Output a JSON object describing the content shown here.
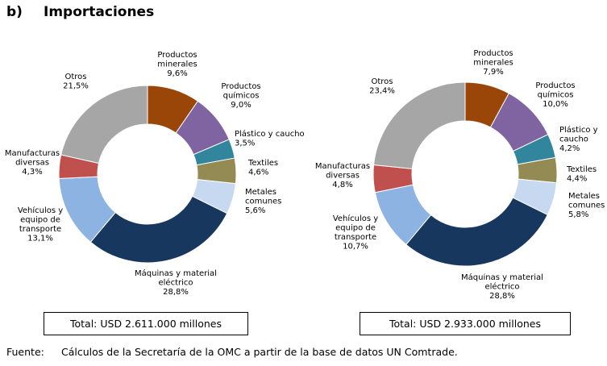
{
  "heading": {
    "letter": "b)",
    "title": "Importaciones"
  },
  "colors": {
    "Productos minerales": "#9a4608",
    "Productos químicos": "#8064a2",
    "Plástico y caucho": "#31859c",
    "Textiles": "#948a54",
    "Metales comunes": "#c6d9f0",
    "Máquinas y material eléctrico": "#17375e",
    "Vehículos y equipo de transporte": "#8db3e2",
    "Manufacturas diversas": "#c0504d",
    "Otros": "#a6a6a6"
  },
  "chart_data": [
    {
      "type": "pie",
      "donut": true,
      "categories": [
        "Productos minerales",
        "Productos químicos",
        "Plástico y caucho",
        "Textiles",
        "Metales comunes",
        "Máquinas y material eléctrico",
        "Vehículos y equipo de transporte",
        "Manufacturas diversas",
        "Otros"
      ],
      "values": [
        9.6,
        9.0,
        3.5,
        4.6,
        5.6,
        28.8,
        13.1,
        4.3,
        21.5
      ],
      "value_labels": [
        "9,6%",
        "9,0%",
        "3,5%",
        "4,6%",
        "5,6%",
        "28,8%",
        "13,1%",
        "4,3%",
        "21,5%"
      ],
      "slice_labels": [
        [
          "Productos",
          "minerales"
        ],
        [
          "Productos",
          "químicos"
        ],
        [
          "Plástico y caucho"
        ],
        [
          "Textiles"
        ],
        [
          "Metales",
          "comunes"
        ],
        [
          "Máquinas y material",
          "eléctrico"
        ],
        [
          "Vehículos y",
          "equipo de",
          "transporte"
        ],
        [
          "Manufacturas",
          "diversas"
        ],
        [
          "Otros"
        ]
      ],
      "total": "Total: USD 2.611.000 millones"
    },
    {
      "type": "pie",
      "donut": true,
      "categories": [
        "Productos minerales",
        "Productos químicos",
        "Plástico y caucho",
        "Textiles",
        "Metales comunes",
        "Máquinas y material eléctrico",
        "Vehículos y equipo de transporte",
        "Manufacturas diversas",
        "Otros"
      ],
      "values": [
        7.9,
        10.0,
        4.2,
        4.4,
        5.8,
        28.8,
        10.7,
        4.8,
        23.4
      ],
      "value_labels": [
        "7,9%",
        "10,0%",
        "4,2%",
        "4,4%",
        "5,8%",
        "28,8%",
        "10,7%",
        "4,8%",
        "23,4%"
      ],
      "slice_labels": [
        [
          "Productos",
          "minerales"
        ],
        [
          "Productos",
          "químicos"
        ],
        [
          "Plástico y",
          "caucho"
        ],
        [
          "Textiles"
        ],
        [
          "Metales",
          "comunes"
        ],
        [
          "Máquinas y material",
          "eléctrico"
        ],
        [
          "Vehículos y",
          "equipo de",
          "transporte"
        ],
        [
          "Manufacturas",
          "diversas"
        ],
        [
          "Otros"
        ]
      ],
      "total": "Total: USD 2.933.000 millones"
    }
  ],
  "source": {
    "label": "Fuente:",
    "text": "Cálculos de la Secretaría de la OMC a partir de la base de datos UN Comtrade."
  }
}
